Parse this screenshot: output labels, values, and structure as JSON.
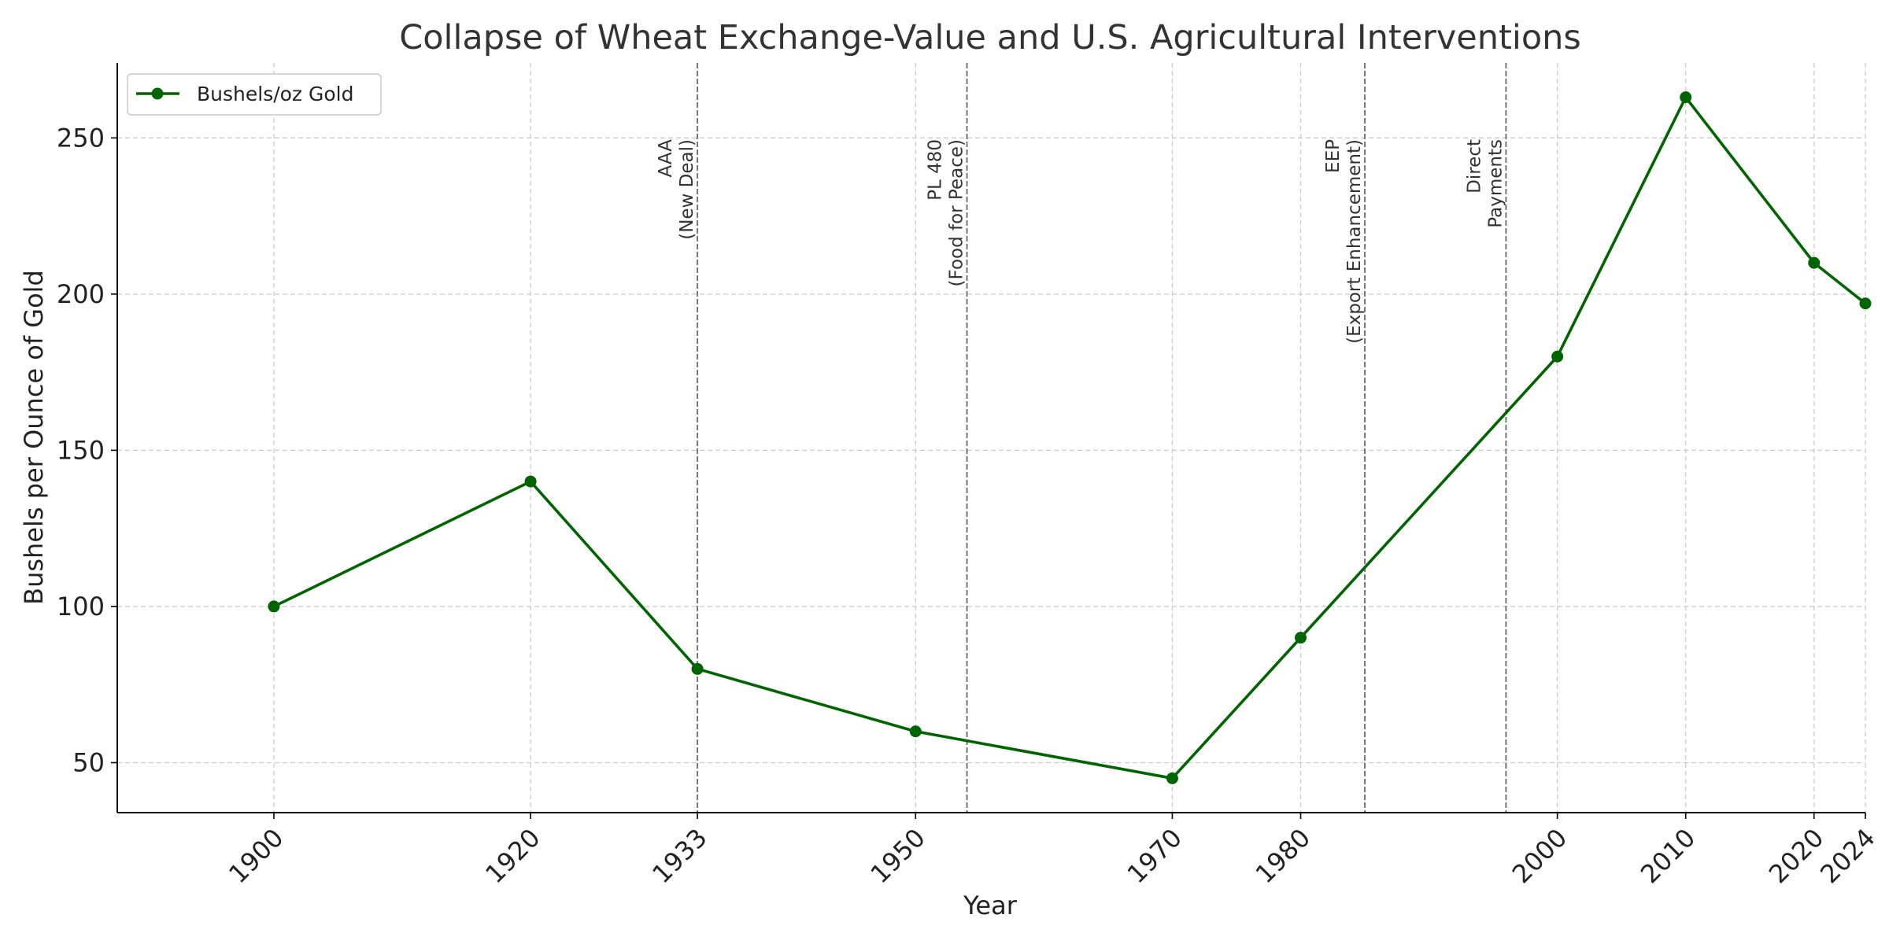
{
  "chart_data": {
    "type": "line",
    "title": "Collapse of Wheat Exchange-Value and U.S. Agricultural Interventions",
    "xlabel": "Year",
    "ylabel": "Bushels per Ounce of Gold",
    "xlim": [
      1887.8,
      2024
    ],
    "ylim": [
      34,
      274
    ],
    "x_ticks": [
      1900,
      1920,
      1933,
      1950,
      1970,
      1980,
      2000,
      2010,
      2020,
      2024
    ],
    "y_ticks": [
      50,
      100,
      150,
      200,
      250
    ],
    "grid": true,
    "legend": {
      "placement": "top-left"
    },
    "series": [
      {
        "name": "Bushels/oz Gold",
        "color": "#006400",
        "marker": "circle",
        "x": [
          1900,
          1920,
          1933,
          1950,
          1970,
          1980,
          2000,
          2010,
          2020,
          2024
        ],
        "y": [
          100,
          140,
          80,
          60,
          45,
          90,
          180,
          263,
          210,
          197
        ]
      }
    ],
    "annotations": [
      {
        "x": 1933,
        "lines": [
          "AAA",
          "(New Deal)"
        ]
      },
      {
        "x": 1954,
        "lines": [
          "PL 480",
          "(Food for Peace)"
        ]
      },
      {
        "x": 1985,
        "lines": [
          "EEP",
          "(Export Enhancement)"
        ]
      },
      {
        "x": 1996,
        "lines": [
          "Direct",
          "Payments"
        ]
      }
    ],
    "colors": {
      "series": "#006400",
      "grid": "#cccccc",
      "vline": "#777777",
      "axis": "#000000"
    }
  }
}
